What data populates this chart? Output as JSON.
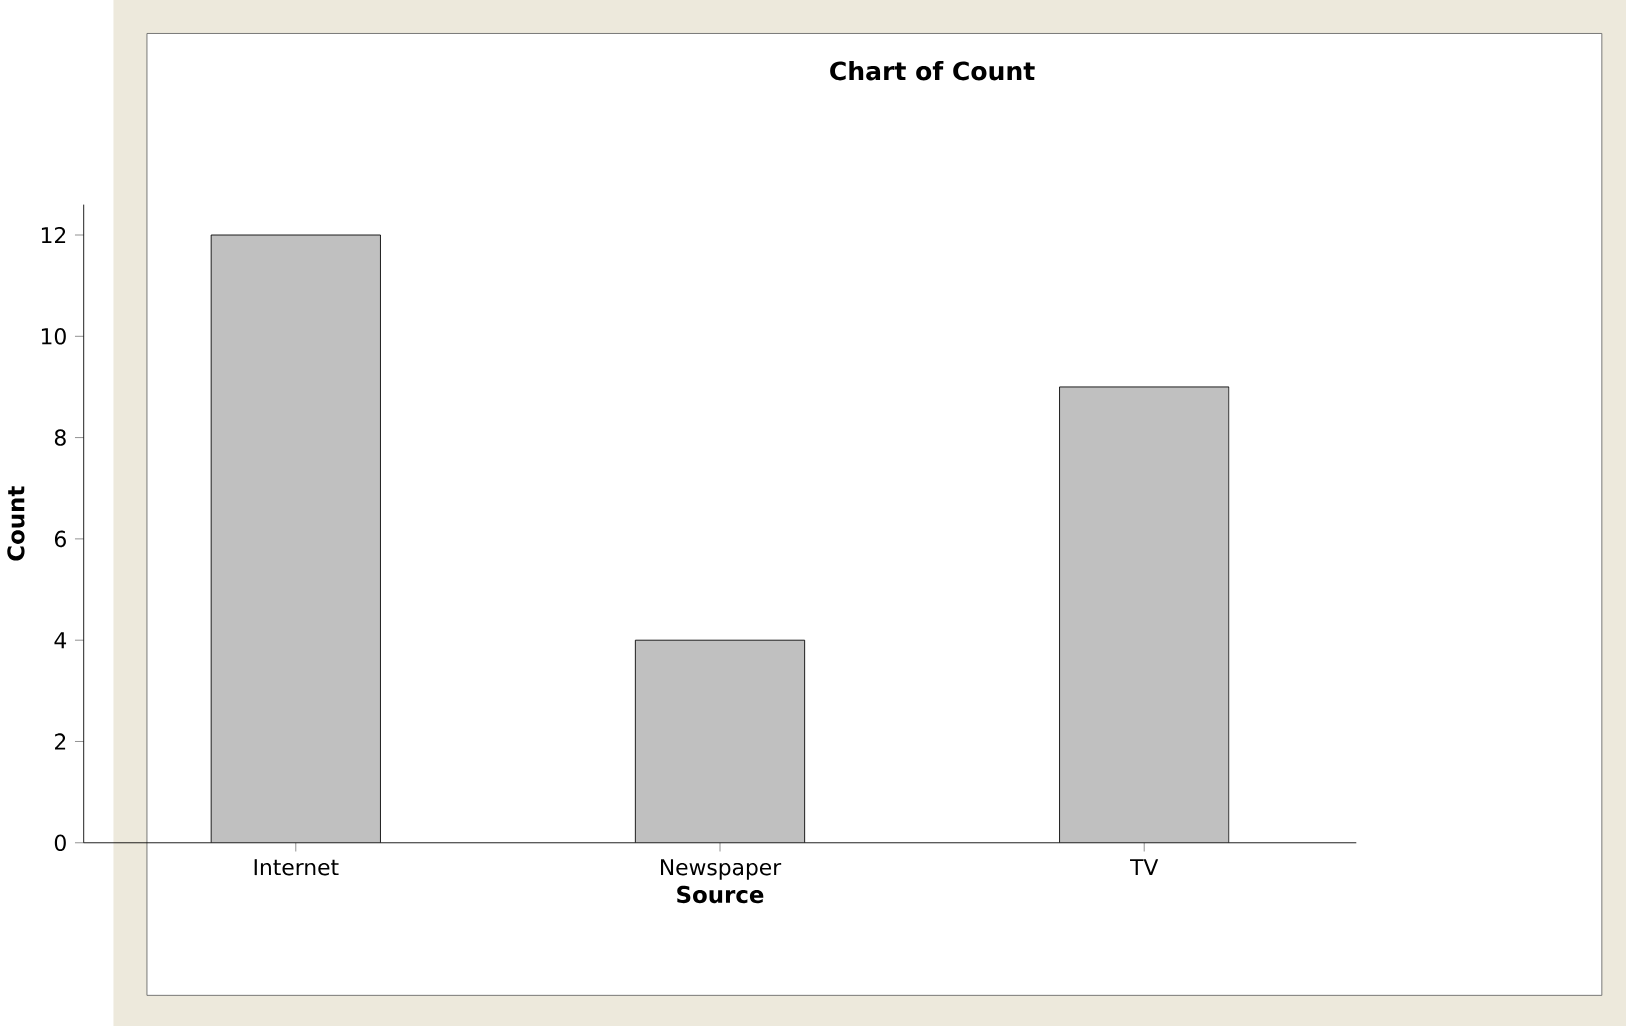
{
  "chart_data": {
    "type": "bar",
    "title": "Chart of Count",
    "xlabel": "Source",
    "ylabel": "Count",
    "categories": [
      "Internet",
      "Newspaper",
      "TV"
    ],
    "values": [
      12,
      4,
      9
    ],
    "color": "#c0c0c0",
    "ylim": [
      0,
      12.6
    ],
    "yticks": [
      0,
      2,
      4,
      6,
      8,
      10,
      12
    ]
  }
}
